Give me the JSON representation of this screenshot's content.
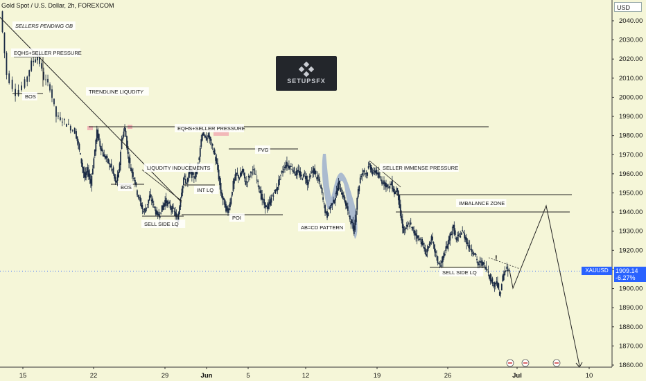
{
  "header": {
    "title": "Gold Spot / U.S. Dollar, 2h, FOREXCOM",
    "currency": "USD"
  },
  "logo": {
    "text": "SETUPSFX"
  },
  "price_label": {
    "symbol": "XAUUSD",
    "price": "1909.14",
    "change": "-6.27%"
  },
  "colors": {
    "background": "#f5f6d8",
    "candle": "#1a2a44",
    "highlight": "#7a95c9",
    "tag": "#2962ff",
    "zone": "#f2b8b8"
  },
  "chart_data": {
    "type": "candlestick",
    "y_axis": {
      "ticks": [
        "2040.00",
        "2030.00",
        "2020.00",
        "2010.00",
        "2000.00",
        "1990.00",
        "1980.00",
        "1970.00",
        "1960.00",
        "1950.00",
        "1940.00",
        "1930.00",
        "1920.00",
        "1910.00",
        "1900.00",
        "1890.00",
        "1880.00",
        "1870.00",
        "1860.00"
      ],
      "range": [
        1855,
        2050
      ]
    },
    "x_axis": {
      "ticks": [
        "15",
        "22",
        "29",
        "Jun",
        "5",
        "12",
        "19",
        "26",
        "Jul",
        "10"
      ]
    },
    "price_path": [
      [
        0,
        2045
      ],
      [
        2,
        2012
      ],
      [
        5,
        2002
      ],
      [
        8,
        2008
      ],
      [
        10,
        2018
      ],
      [
        12,
        2022
      ],
      [
        14,
        2010
      ],
      [
        16,
        2005
      ],
      [
        18,
        1990
      ],
      [
        20,
        1988
      ],
      [
        22,
        1985
      ],
      [
        24,
        1982
      ],
      [
        25,
        1975
      ],
      [
        26,
        1966
      ],
      [
        27,
        1958
      ],
      [
        28,
        1962
      ],
      [
        29,
        1955
      ],
      [
        30,
        1968
      ],
      [
        31,
        1982
      ],
      [
        32,
        1975
      ],
      [
        33,
        1970
      ],
      [
        34,
        1968
      ],
      [
        35,
        1965
      ],
      [
        36,
        1962
      ],
      [
        37,
        1955
      ],
      [
        38,
        1960
      ],
      [
        39,
        1978
      ],
      [
        40,
        1984
      ],
      [
        41,
        1970
      ],
      [
        42,
        1962
      ],
      [
        43,
        1958
      ],
      [
        44,
        1950
      ],
      [
        45,
        1945
      ],
      [
        46,
        1940
      ],
      [
        47,
        1943
      ],
      [
        48,
        1948
      ],
      [
        49,
        1945
      ],
      [
        50,
        1940
      ],
      [
        51,
        1938
      ],
      [
        52,
        1942
      ],
      [
        53,
        1946
      ],
      [
        54,
        1944
      ],
      [
        55,
        1942
      ],
      [
        56,
        1940
      ],
      [
        57,
        1935
      ],
      [
        58,
        1948
      ],
      [
        59,
        1958
      ],
      [
        60,
        1955
      ],
      [
        61,
        1962
      ],
      [
        62,
        1958
      ],
      [
        63,
        1960
      ],
      [
        64,
        1970
      ],
      [
        65,
        1982
      ],
      [
        66,
        1978
      ],
      [
        67,
        1980
      ],
      [
        68,
        1975
      ],
      [
        69,
        1970
      ],
      [
        70,
        1962
      ],
      [
        71,
        1950
      ],
      [
        72,
        1945
      ],
      [
        73,
        1940
      ],
      [
        74,
        1945
      ],
      [
        75,
        1955
      ],
      [
        76,
        1960
      ],
      [
        77,
        1958
      ],
      [
        78,
        1962
      ],
      [
        79,
        1955
      ],
      [
        80,
        1958
      ],
      [
        81,
        1962
      ],
      [
        82,
        1960
      ],
      [
        83,
        1955
      ],
      [
        84,
        1948
      ],
      [
        85,
        1944
      ],
      [
        86,
        1942
      ],
      [
        87,
        1946
      ],
      [
        88,
        1950
      ],
      [
        89,
        1952
      ],
      [
        90,
        1958
      ],
      [
        91,
        1962
      ],
      [
        92,
        1965
      ],
      [
        93,
        1964
      ],
      [
        94,
        1963
      ],
      [
        95,
        1960
      ],
      [
        96,
        1961
      ],
      [
        97,
        1958
      ],
      [
        98,
        1960
      ],
      [
        99,
        1955
      ],
      [
        100,
        1960
      ],
      [
        101,
        1962
      ],
      [
        102,
        1958
      ],
      [
        103,
        1955
      ],
      [
        104,
        1946
      ],
      [
        105,
        1938
      ],
      [
        106,
        1942
      ],
      [
        107,
        1945
      ],
      [
        108,
        1948
      ],
      [
        109,
        1955
      ],
      [
        110,
        1950
      ],
      [
        111,
        1946
      ],
      [
        112,
        1940
      ],
      [
        113,
        1935
      ],
      [
        114,
        1930
      ],
      [
        115,
        1948
      ],
      [
        116,
        1958
      ],
      [
        117,
        1962
      ],
      [
        118,
        1960
      ],
      [
        119,
        1965
      ],
      [
        120,
        1960
      ],
      [
        121,
        1962
      ],
      [
        122,
        1958
      ],
      [
        123,
        1956
      ],
      [
        124,
        1955
      ],
      [
        125,
        1953
      ],
      [
        126,
        1955
      ],
      [
        127,
        1950
      ],
      [
        128,
        1952
      ],
      [
        129,
        1938
      ],
      [
        130,
        1930
      ],
      [
        131,
        1932
      ],
      [
        132,
        1934
      ],
      [
        133,
        1930
      ],
      [
        134,
        1928
      ],
      [
        135,
        1926
      ],
      [
        136,
        1924
      ],
      [
        137,
        1918
      ],
      [
        138,
        1922
      ],
      [
        139,
        1926
      ],
      [
        140,
        1920
      ],
      [
        141,
        1914
      ],
      [
        142,
        1912
      ],
      [
        143,
        1918
      ],
      [
        144,
        1922
      ],
      [
        145,
        1928
      ],
      [
        146,
        1932
      ],
      [
        147,
        1925
      ],
      [
        148,
        1928
      ],
      [
        149,
        1930
      ],
      [
        150,
        1926
      ],
      [
        151,
        1922
      ],
      [
        152,
        1920
      ],
      [
        153,
        1918
      ],
      [
        154,
        1912
      ],
      [
        155,
        1914
      ],
      [
        156,
        1912
      ],
      [
        157,
        1910
      ],
      [
        158,
        1905
      ],
      [
        159,
        1902
      ],
      [
        160,
        1904
      ],
      [
        161,
        1896
      ],
      [
        162,
        1906
      ],
      [
        163,
        1910
      ],
      [
        164,
        1909
      ]
    ],
    "projection": [
      [
        1910,
        "Jun 30"
      ],
      [
        1900,
        ""
      ],
      [
        1944,
        ""
      ],
      [
        1858,
        ""
      ]
    ],
    "annotations": [
      "SELLERS PENDING OB",
      "EQHS+SELLER PRESSURE",
      "BOS",
      "TRENDLINE LIQUDITY",
      "EQHS+SELLER PRESSURE",
      "FVG",
      "LIQUDITY INDUCEMENTS",
      "BOS",
      "INT LQ",
      "SELL SIDE LQ",
      "POI",
      "AB=CD PATTERN",
      "SELLER IMMENSE PRESSURE",
      "IMBALANCE ZONE",
      "SELL SIDE LQ"
    ]
  }
}
